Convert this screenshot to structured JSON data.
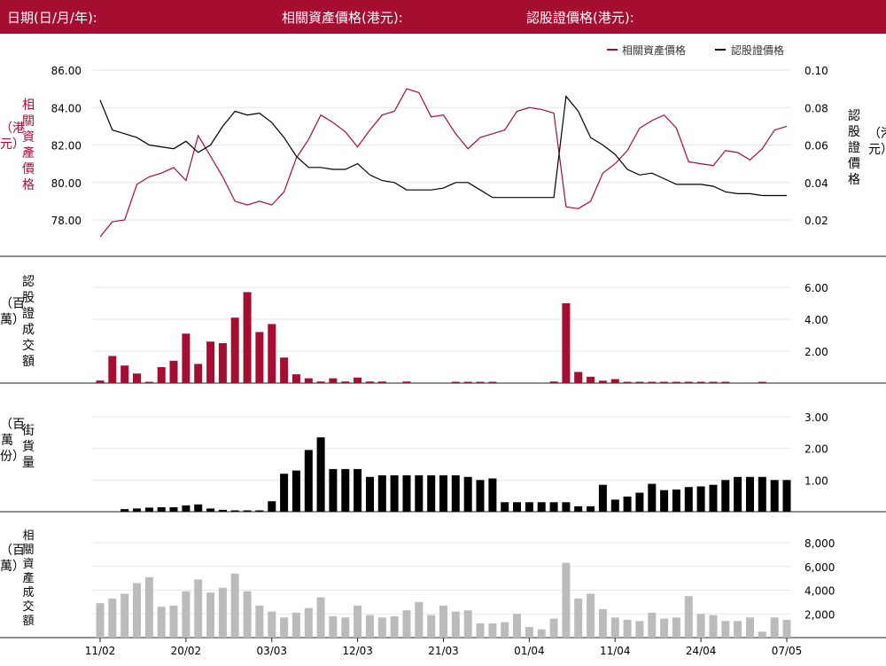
{
  "header": {
    "date_label": "日期(日/月/年):",
    "underlying_label": "相關資產價格(港元):",
    "warrant_label": "認股證價格(港元):"
  },
  "colors": {
    "header_bg": "#a50d31",
    "underlying": "#a50d31",
    "warrant": "#000000",
    "turnover": "#a50d31",
    "outstanding": "#000000",
    "underlying_turnover": "#bbbbbb"
  },
  "chart_data": [
    {
      "type": "line",
      "legend": [
        "相關資產價格",
        "認股證價格"
      ],
      "legend_position": "top-right",
      "left_axis": {
        "label": "相關資產價格",
        "unit": "（港元）",
        "ticks": [
          "78.00",
          "80.00",
          "82.00",
          "84.00",
          "86.00"
        ],
        "range": [
          76.5,
          87.5
        ]
      },
      "right_axis": {
        "label": "認股證價格",
        "unit": "（港元）",
        "ticks": [
          "0.02",
          "0.04",
          "0.06",
          "0.08",
          "0.10"
        ],
        "range": [
          0.005,
          0.11
        ]
      },
      "series": [
        {
          "name": "相關資產價格",
          "axis": "left",
          "values": [
            77.1,
            77.9,
            78.0,
            79.9,
            80.3,
            80.5,
            80.8,
            80.1,
            82.5,
            81.4,
            80.3,
            79.0,
            78.8,
            79.0,
            78.8,
            79.5,
            81.3,
            82.3,
            83.6,
            83.2,
            82.7,
            81.9,
            82.8,
            83.6,
            83.8,
            85.0,
            84.8,
            83.5,
            83.6,
            82.6,
            81.8,
            82.4,
            82.6,
            82.8,
            83.8,
            84.0,
            83.9,
            83.7,
            78.7,
            78.6,
            79.0,
            80.5,
            81.0,
            81.7,
            82.9,
            83.3,
            83.6,
            82.9,
            81.1,
            81.0,
            80.9,
            81.7,
            81.6,
            81.2,
            81.8,
            82.8,
            83.0
          ]
        },
        {
          "name": "認股證價格",
          "axis": "right",
          "values": [
            0.084,
            0.068,
            0.066,
            0.064,
            0.06,
            0.059,
            0.058,
            0.062,
            0.056,
            0.06,
            0.07,
            0.078,
            0.076,
            0.077,
            0.072,
            0.064,
            0.054,
            0.048,
            0.048,
            0.047,
            0.047,
            0.05,
            0.044,
            0.041,
            0.04,
            0.036,
            0.036,
            0.036,
            0.037,
            0.04,
            0.04,
            0.036,
            0.032,
            0.032,
            0.032,
            0.032,
            0.032,
            0.032,
            0.086,
            0.078,
            0.064,
            0.06,
            0.055,
            0.047,
            0.044,
            0.045,
            0.042,
            0.039,
            0.039,
            0.039,
            0.038,
            0.035,
            0.034,
            0.034,
            0.033,
            0.033,
            0.033
          ]
        }
      ]
    },
    {
      "type": "bar",
      "label": "認股證成交額",
      "unit": "（百萬）",
      "ticks": [
        "2.00",
        "4.00",
        "6.00"
      ],
      "range": [
        0,
        6.5
      ],
      "values": [
        0.16,
        1.7,
        1.1,
        0.6,
        0.04,
        1.0,
        1.4,
        3.1,
        1.2,
        2.6,
        2.5,
        4.1,
        5.7,
        3.2,
        3.7,
        1.6,
        0.55,
        0.3,
        0.1,
        0.3,
        0.1,
        0.35,
        0.1,
        0.1,
        0,
        0.1,
        0,
        0,
        0,
        0.07,
        0.07,
        0.07,
        0.07,
        0,
        0,
        0,
        0,
        0.1,
        5.0,
        0.7,
        0.4,
        0.15,
        0.25,
        0.07,
        0.07,
        0.07,
        0.07,
        0.07,
        0.07,
        0.07,
        0.07,
        0.07,
        0,
        0,
        0.05,
        0,
        0
      ]
    },
    {
      "type": "bar",
      "label": "街貨量",
      "unit": "（百萬份）",
      "ticks": [
        "1.00",
        "2.00",
        "3.00"
      ],
      "range": [
        0,
        3.3
      ],
      "values": [
        0,
        0,
        0.08,
        0.1,
        0.13,
        0.14,
        0.14,
        0.2,
        0.23,
        0.1,
        0.06,
        0.04,
        0.02,
        0.02,
        0.33,
        1.2,
        1.3,
        1.95,
        2.35,
        1.35,
        1.35,
        1.35,
        1.1,
        1.15,
        1.15,
        1.15,
        1.15,
        1.15,
        1.15,
        1.15,
        1.1,
        1.0,
        1.05,
        0.3,
        0.3,
        0.3,
        0.3,
        0.3,
        0.3,
        0.17,
        0.17,
        0.85,
        0.38,
        0.48,
        0.6,
        0.88,
        0.68,
        0.7,
        0.78,
        0.8,
        0.85,
        1.0,
        1.1,
        1.1,
        1.1,
        1.0,
        1.0
      ]
    },
    {
      "type": "bar",
      "label": "相關資產成交額",
      "unit": "（百萬）",
      "ticks": [
        "2,000",
        "4,000",
        "6,000",
        "8,000"
      ],
      "range": [
        0,
        9000
      ],
      "values": [
        2900,
        3300,
        3700,
        4600,
        5100,
        2600,
        2700,
        3900,
        4900,
        3800,
        4200,
        5400,
        3900,
        2700,
        2200,
        1700,
        2100,
        2500,
        3400,
        1800,
        1700,
        2700,
        1900,
        1700,
        1800,
        2300,
        3000,
        1900,
        2700,
        2200,
        2300,
        1200,
        1200,
        1300,
        2000,
        900,
        700,
        1600,
        6300,
        3300,
        3700,
        2400,
        1700,
        1500,
        1400,
        2100,
        1600,
        1700,
        3500,
        2000,
        1900,
        1400,
        1400,
        1700,
        500,
        1700,
        1500
      ]
    },
    {
      "type": "axis",
      "x_ticks": [
        "11/02",
        "20/02",
        "03/03",
        "12/03",
        "21/03",
        "01/04",
        "11/04",
        "24/04",
        "07/05"
      ]
    }
  ]
}
